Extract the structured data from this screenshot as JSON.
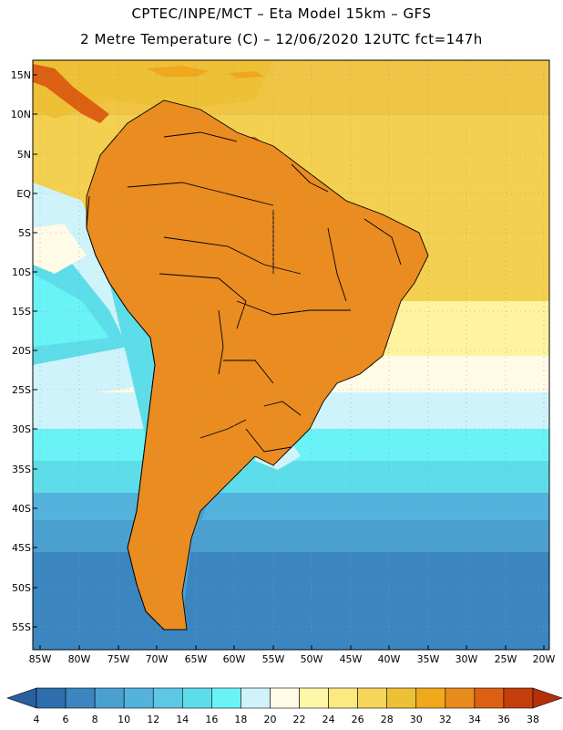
{
  "header": {
    "title_line1": "CPTEC/INPE/MCT –  Eta Model 15km – GFS",
    "title_line2": "2 Metre Temperature (C) – 12/06/2020 12UTC fct=147h"
  },
  "map": {
    "lat_labels": [
      "15N",
      "10N",
      "5N",
      "EQ",
      "5S",
      "10S",
      "15S",
      "20S",
      "25S",
      "30S",
      "35S",
      "40S",
      "45S",
      "50S",
      "55S"
    ],
    "lon_labels": [
      "85W",
      "80W",
      "75W",
      "70W",
      "65W",
      "60W",
      "55W",
      "50W",
      "45W",
      "40W",
      "35W",
      "30W",
      "25W",
      "20W"
    ]
  },
  "colorbar": {
    "labels": [
      "4",
      "6",
      "8",
      "10",
      "12",
      "14",
      "16",
      "18",
      "20",
      "22",
      "24",
      "26",
      "28",
      "30",
      "32",
      "34",
      "36",
      "38"
    ],
    "colors": [
      "#2f6fae",
      "#3b86c0",
      "#4aa0cf",
      "#54b3dc",
      "#5ec8e4",
      "#5ddde9",
      "#69f3f6",
      "#cff3fb",
      "#fffbe6",
      "#fff7a8",
      "#fce982",
      "#f6d55a",
      "#eec035",
      "#f0a81c",
      "#e98a1d",
      "#dc6012",
      "#c43e0c"
    ],
    "under_color": "#2a5fa0",
    "over_color": "#b2300a"
  }
}
